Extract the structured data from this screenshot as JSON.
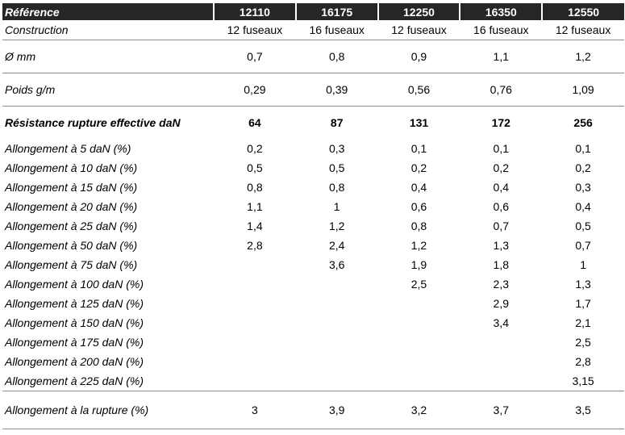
{
  "columns": [
    "Référence",
    "12110",
    "16175",
    "12250",
    "16350",
    "12550"
  ],
  "rows": [
    {
      "label": "Construction",
      "values": [
        "12 fuseaux",
        "16 fuseaux",
        "12 fuseaux",
        "16 fuseaux",
        "12 fuseaux"
      ]
    },
    {
      "label": "Ø mm",
      "values": [
        "0,7",
        "0,8",
        "0,9",
        "1,1",
        "1,2"
      ]
    },
    {
      "label": "Poids g/m",
      "values": [
        "0,29",
        "0,39",
        "0,56",
        "0,76",
        "1,09"
      ]
    },
    {
      "label": "Résistance rupture effective daN",
      "values": [
        "64",
        "87",
        "131",
        "172",
        "256"
      ]
    },
    {
      "label": "Allongement à 5 daN (%)",
      "values": [
        "0,2",
        "0,3",
        "0,1",
        "0,1",
        "0,1"
      ]
    },
    {
      "label": "Allongement à 10 daN (%)",
      "values": [
        "0,5",
        "0,5",
        "0,2",
        "0,2",
        "0,2"
      ]
    },
    {
      "label": "Allongement à 15 daN (%)",
      "values": [
        "0,8",
        "0,8",
        "0,4",
        "0,4",
        "0,3"
      ]
    },
    {
      "label": "Allongement à 20 daN (%)",
      "values": [
        "1,1",
        "1",
        "0,6",
        "0,6",
        "0,4"
      ]
    },
    {
      "label": "Allongement à 25 daN (%)",
      "values": [
        "1,4",
        "1,2",
        "0,8",
        "0,7",
        "0,5"
      ]
    },
    {
      "label": "Allongement à 50 daN (%)",
      "values": [
        "2,8",
        "2,4",
        "1,2",
        "1,3",
        "0,7"
      ]
    },
    {
      "label": "Allongement à 75 daN (%)",
      "values": [
        "",
        "3,6",
        "1,9",
        "1,8",
        "1"
      ]
    },
    {
      "label": "Allongement à 100 daN (%)",
      "values": [
        "",
        "",
        "2,5",
        "2,3",
        "1,3"
      ]
    },
    {
      "label": "Allongement à 125 daN (%)",
      "values": [
        "",
        "",
        "",
        "2,9",
        "1,7"
      ]
    },
    {
      "label": "Allongement à 150 daN (%)",
      "values": [
        "",
        "",
        "",
        "3,4",
        "2,1"
      ]
    },
    {
      "label": "Allongement à 175 daN (%)",
      "values": [
        "",
        "",
        "",
        "",
        "2,5"
      ]
    },
    {
      "label": "Allongement à 200 daN (%)",
      "values": [
        "",
        "",
        "",
        "",
        "2,8"
      ]
    },
    {
      "label": "Allongement à 225 daN (%)",
      "values": [
        "",
        "",
        "",
        "",
        "3,15"
      ]
    },
    {
      "label": "Allongement à la rupture (%)",
      "values": [
        "3",
        "3,9",
        "3,2",
        "3,7",
        "3,5"
      ]
    }
  ]
}
